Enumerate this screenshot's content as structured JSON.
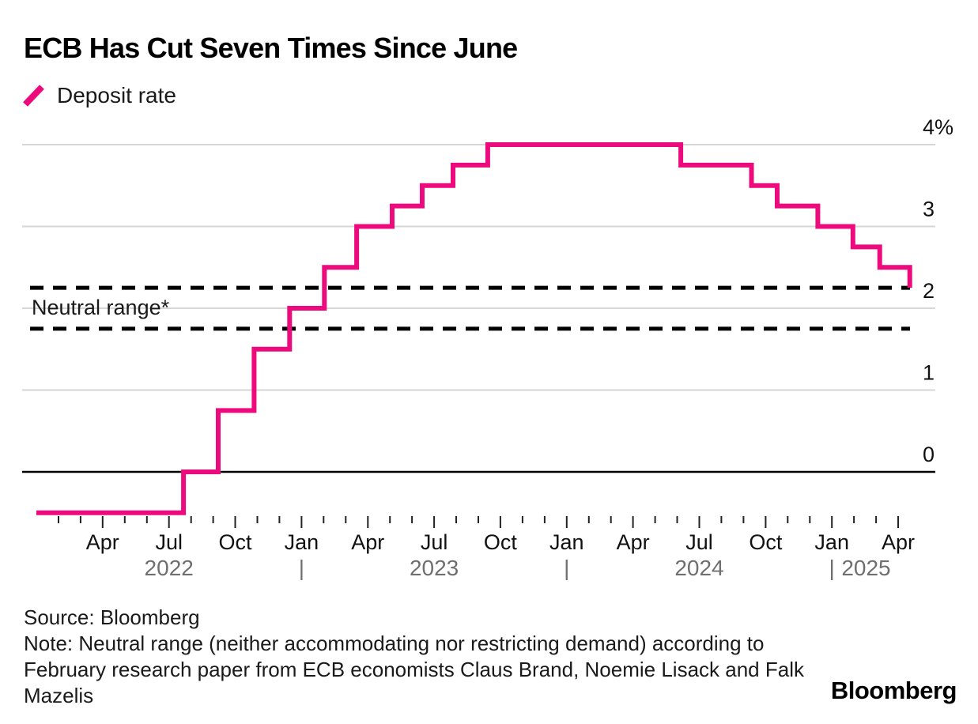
{
  "header": {
    "title": "ECB Has Cut Seven Times Since June"
  },
  "legend": {
    "label": "Deposit rate",
    "swatch_color": "#ED0A7C"
  },
  "annotations": {
    "neutral_range_label": "Neutral range*"
  },
  "footer": {
    "source": "Source: Bloomberg",
    "note_lines": [
      "Note: Neutral range (neither accommodating nor restricting demand) according to",
      "February research paper from ECB economists Claus Brand, Noemie Lisack and Falk",
      "Mazelis"
    ],
    "brand": "Bloomberg"
  },
  "chart_data": {
    "type": "line",
    "subtype": "step",
    "title": "ECB Has Cut Seven Times Since June",
    "xlabel": "",
    "ylabel": "",
    "y_axis": {
      "unit": "%",
      "range": [
        -0.5,
        4
      ],
      "grid": true,
      "ticks": [
        {
          "v": 4,
          "label": "4%"
        },
        {
          "v": 3,
          "label": "3"
        },
        {
          "v": 2,
          "label": "2"
        },
        {
          "v": 1,
          "label": "1"
        },
        {
          "v": 0,
          "label": "0"
        }
      ]
    },
    "x_axis": {
      "unit": "month",
      "range": [
        "2022-01",
        "2025-05"
      ],
      "tick_interval": "1 month",
      "major_tick_interval": "3 months",
      "labels": [
        {
          "label": "Apr",
          "m": 3
        },
        {
          "label": "Jul",
          "m": 6
        },
        {
          "label": "Oct",
          "m": 9
        },
        {
          "label": "Jan",
          "m": 12
        },
        {
          "label": "Apr",
          "m": 15
        },
        {
          "label": "Jul",
          "m": 18
        },
        {
          "label": "Oct",
          "m": 21
        },
        {
          "label": "Jan",
          "m": 24
        },
        {
          "label": "Apr",
          "m": 27
        },
        {
          "label": "Jul",
          "m": 30
        },
        {
          "label": "Oct",
          "m": 33
        },
        {
          "label": "Jan",
          "m": 36
        },
        {
          "label": "Apr",
          "m": 39
        }
      ],
      "years": [
        {
          "label": "2022",
          "m": 6
        },
        {
          "label": "|",
          "m": 12
        },
        {
          "label": "2023",
          "m": 18
        },
        {
          "label": "|",
          "m": 24
        },
        {
          "label": "2024",
          "m": 30
        },
        {
          "label": "|",
          "m": 36
        },
        {
          "label": "2025",
          "m": 37.55
        }
      ]
    },
    "neutral_range": {
      "label": "Neutral range*",
      "high": 2.25,
      "low": 1.75,
      "line_color": "#000000",
      "style": "dashed"
    },
    "series": [
      {
        "name": "Deposit rate",
        "color": "#ED0A7C",
        "points": [
          [
            "2022-01-01",
            -0.5
          ],
          [
            "2022-07-21",
            0
          ],
          [
            "2022-09-08",
            0.75
          ],
          [
            "2022-10-27",
            1.5
          ],
          [
            "2022-12-15",
            2
          ],
          [
            "2023-02-02",
            2.5
          ],
          [
            "2023-03-16",
            3
          ],
          [
            "2023-05-04",
            3.25
          ],
          [
            "2023-06-15",
            3.5
          ],
          [
            "2023-07-27",
            3.75
          ],
          [
            "2023-09-14",
            4
          ],
          [
            "2024-06-06",
            3.75
          ],
          [
            "2024-09-12",
            3.5
          ],
          [
            "2024-10-17",
            3.25
          ],
          [
            "2024-12-12",
            3
          ],
          [
            "2025-01-30",
            2.75
          ],
          [
            "2025-03-06",
            2.5
          ],
          [
            "2025-04-17",
            2.25
          ]
        ]
      }
    ],
    "colors": {
      "grid": "#D6D6D6",
      "zero_line": "#000000",
      "month_label": "#111111",
      "year_label": "#6F6F6F",
      "tick": "#222222"
    }
  }
}
